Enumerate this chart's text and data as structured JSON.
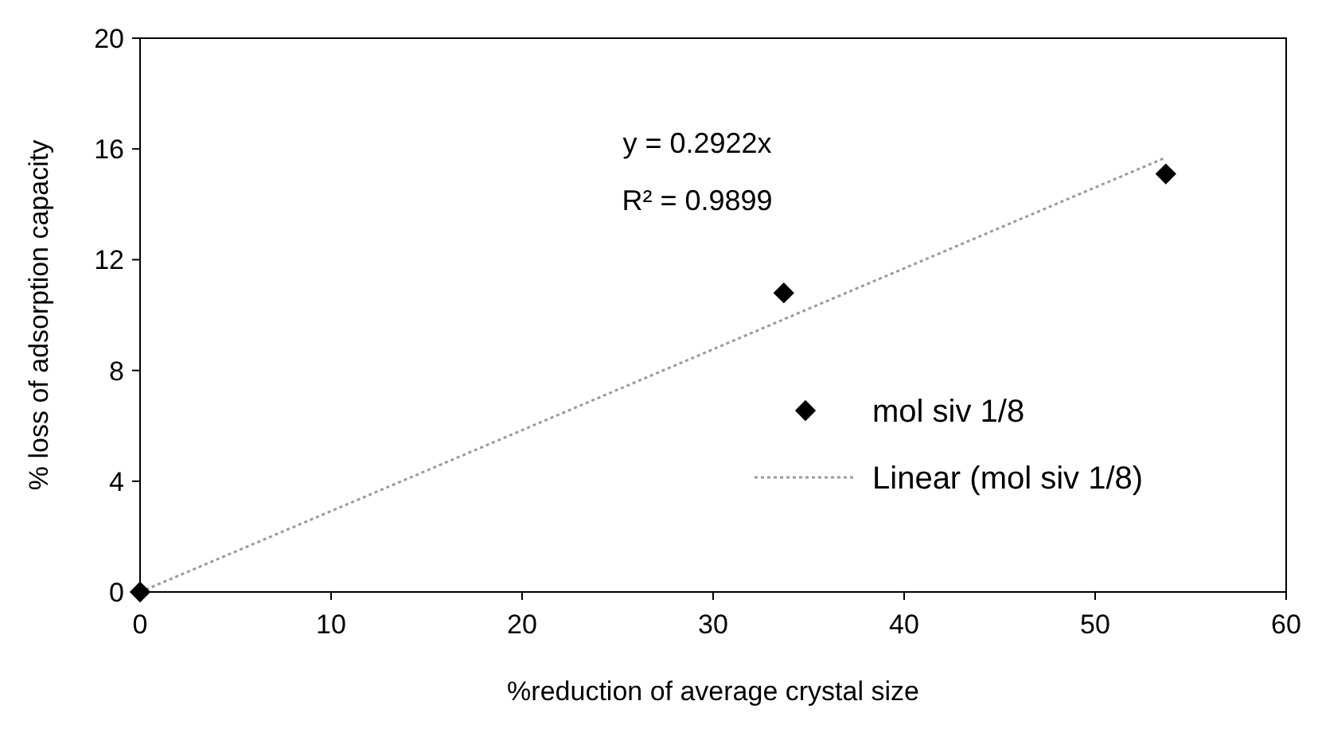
{
  "chart_data": {
    "type": "scatter",
    "xlabel": "%reduction of average crystal size",
    "ylabel": "% loss of adsorption capacity",
    "xlim": [
      0,
      60
    ],
    "xticks": [
      0,
      10,
      20,
      30,
      40,
      50,
      60
    ],
    "ylim": [
      0,
      20
    ],
    "yticks": [
      0,
      4,
      8,
      12,
      16,
      20
    ],
    "grid": false,
    "legend": "right",
    "annotations": [
      "y = 0.2922x",
      "R² = 0.9899"
    ],
    "series": [
      {
        "name": "mol siv 1/8",
        "color": "#000000",
        "marker": "diamond",
        "x": [
          0,
          33.7,
          53.7
        ],
        "values": [
          0,
          10.8,
          15.1
        ]
      },
      {
        "name": "Linear (mol siv 1/8)",
        "type": "line",
        "color": "#9a9a9a",
        "line_style": "dotted",
        "marker": "none",
        "x": [
          0,
          53.7
        ],
        "values": [
          0,
          15.69
        ]
      }
    ]
  }
}
